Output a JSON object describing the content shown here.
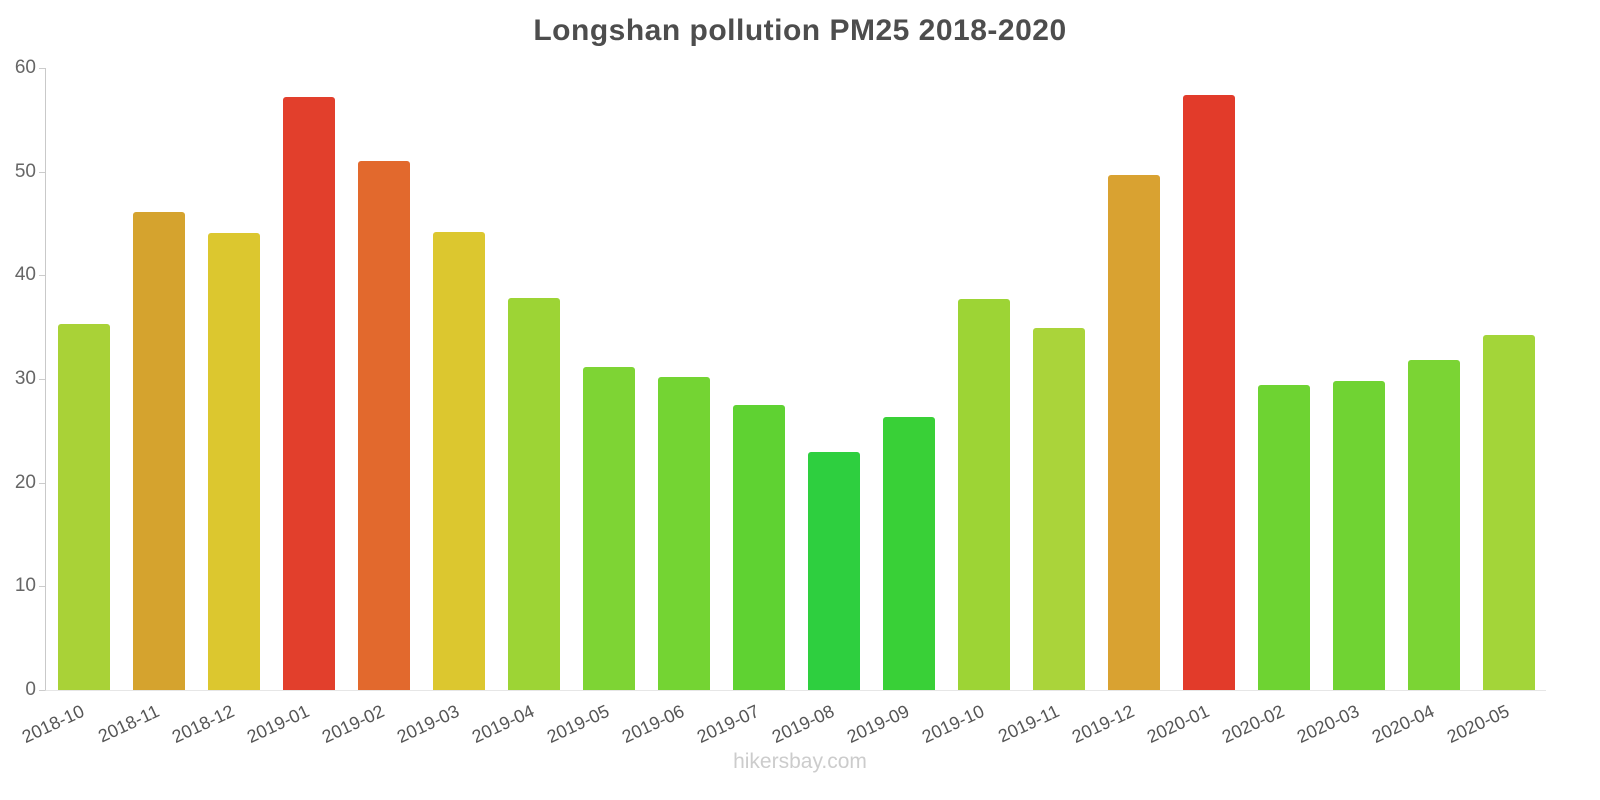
{
  "chart_data": {
    "type": "bar",
    "title": "Longshan pollution PM25 2018-2020",
    "categories": [
      "2018-10",
      "2018-11",
      "2018-12",
      "2019-01",
      "2019-02",
      "2019-03",
      "2019-04",
      "2019-05",
      "2019-06",
      "2019-07",
      "2019-08",
      "2019-09",
      "2019-10",
      "2019-11",
      "2019-12",
      "2020-01",
      "2020-02",
      "2020-03",
      "2020-04",
      "2020-05"
    ],
    "values": [
      35.3,
      46.1,
      44.1,
      57.2,
      51.0,
      44.2,
      37.8,
      31.2,
      30.2,
      27.5,
      23.0,
      26.3,
      37.7,
      34.9,
      49.7,
      57.4,
      29.4,
      29.8,
      31.8,
      34.2
    ],
    "colors": [
      "#a9d237",
      "#d5a32e",
      "#dcc72f",
      "#e23f2c",
      "#e2692d",
      "#dcc72f",
      "#9dd435",
      "#7ed434",
      "#74d433",
      "#5fd232",
      "#2ecf3f",
      "#39d037",
      "#9dd435",
      "#aad43a",
      "#d9a231",
      "#e23b2a",
      "#6ed332",
      "#70d333",
      "#7bd434",
      "#a3d539"
    ],
    "xlabel": "",
    "ylabel": "",
    "ylim": [
      0,
      60
    ],
    "yticks": [
      0,
      10,
      20,
      30,
      40,
      50,
      60
    ],
    "grid": false,
    "legend": false
  },
  "footer": {
    "text": "hikersbay.com"
  }
}
